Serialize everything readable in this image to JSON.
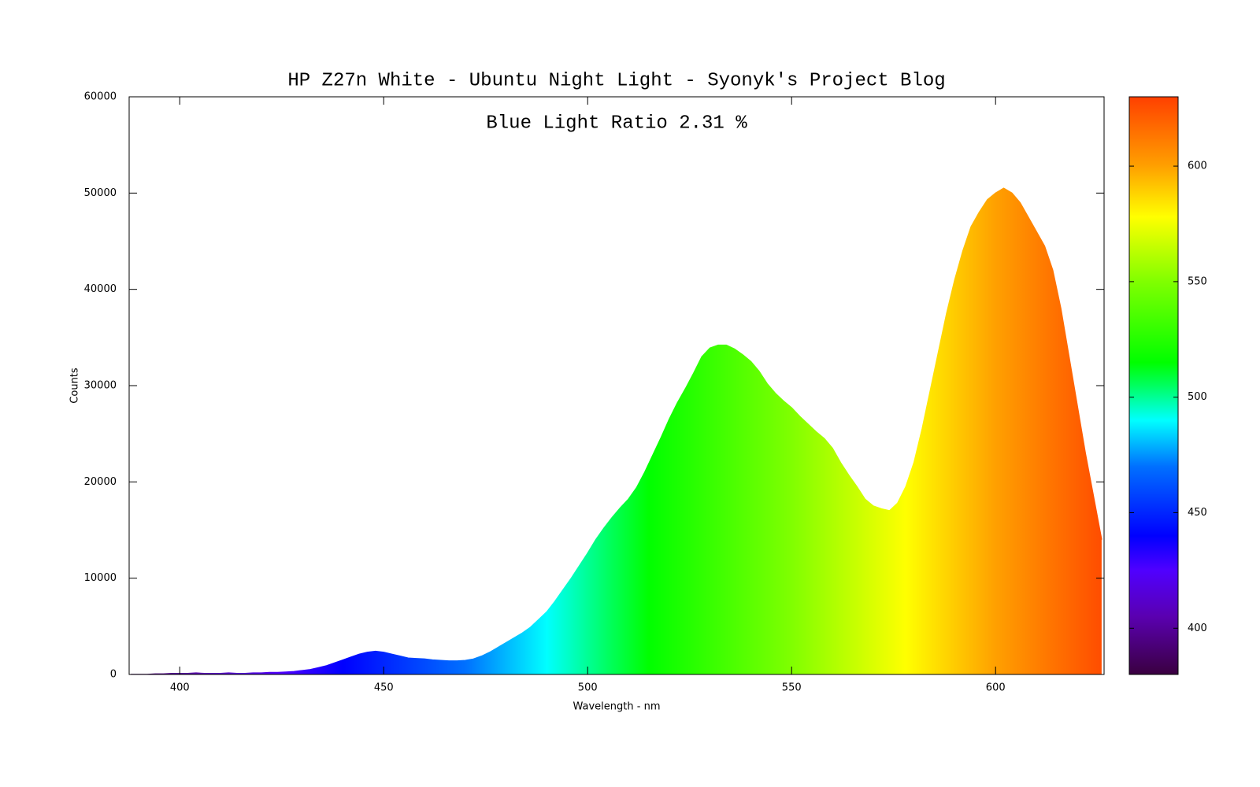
{
  "chart_data": {
    "type": "area",
    "title": "HP Z27n White - Ubuntu Night Light - Syonyk's Project Blog",
    "annotation": "Blue Light Ratio 2.31 %",
    "x_label": "Wavelength - nm",
    "y_label": "Counts",
    "x": [
      388,
      390,
      392,
      394,
      396,
      398,
      400,
      402,
      404,
      406,
      408,
      410,
      412,
      414,
      416,
      418,
      420,
      422,
      424,
      426,
      428,
      430,
      432,
      434,
      436,
      438,
      440,
      442,
      444,
      446,
      448,
      450,
      452,
      454,
      456,
      458,
      460,
      462,
      464,
      466,
      468,
      470,
      472,
      474,
      476,
      478,
      480,
      482,
      484,
      486,
      488,
      490,
      492,
      494,
      496,
      498,
      500,
      502,
      504,
      506,
      508,
      510,
      512,
      514,
      516,
      518,
      520,
      522,
      524,
      526,
      528,
      530,
      532,
      534,
      536,
      538,
      540,
      542,
      544,
      546,
      548,
      550,
      552,
      554,
      556,
      558,
      560,
      562,
      564,
      566,
      568,
      570,
      572,
      574,
      576,
      578,
      580,
      582,
      584,
      586,
      588,
      590,
      592,
      594,
      596,
      598,
      600,
      602,
      604,
      606,
      608,
      610,
      612,
      614,
      616,
      618,
      620,
      622,
      624,
      626
    ],
    "values": [
      0,
      0,
      0,
      50,
      50,
      100,
      100,
      100,
      150,
      100,
      100,
      100,
      150,
      100,
      100,
      150,
      150,
      200,
      200,
      250,
      300,
      400,
      500,
      700,
      900,
      1200,
      1500,
      1800,
      2100,
      2300,
      2400,
      2300,
      2100,
      1900,
      1700,
      1650,
      1600,
      1500,
      1450,
      1400,
      1400,
      1450,
      1600,
      1900,
      2300,
      2800,
      3300,
      3800,
      4300,
      4900,
      5700,
      6500,
      7600,
      8800,
      10000,
      11300,
      12600,
      14000,
      15200,
      16300,
      17300,
      18200,
      19400,
      21000,
      22800,
      24600,
      26500,
      28200,
      29700,
      31300,
      33000,
      33900,
      34200,
      34200,
      33800,
      33200,
      32500,
      31500,
      30200,
      29200,
      28400,
      27700,
      26800,
      26000,
      25200,
      24500,
      23500,
      22000,
      20700,
      19500,
      18200,
      17500,
      17200,
      17000,
      17800,
      19500,
      22000,
      25500,
      29500,
      33500,
      37500,
      41000,
      44000,
      46500,
      48000,
      49300,
      50000,
      50500,
      50000,
      49000,
      47500,
      46000,
      44500,
      42000,
      38000,
      33000,
      28000,
      23000,
      18500,
      14000
    ],
    "xlim": [
      387.6,
      626.6
    ],
    "xticks": [
      400,
      450,
      500,
      550,
      600
    ],
    "ylim": [
      0,
      60000
    ],
    "yticks": [
      0,
      10000,
      20000,
      30000,
      40000,
      50000,
      60000
    ],
    "colorbar": {
      "range": [
        380,
        630
      ],
      "ticks": [
        400,
        450,
        500,
        550,
        600
      ],
      "palette": [
        {
          "value": 380,
          "color": "#3a0040"
        },
        {
          "value": 405,
          "color": "#5a00b0"
        },
        {
          "value": 425,
          "color": "#5000ff"
        },
        {
          "value": 440,
          "color": "#0000ff"
        },
        {
          "value": 470,
          "color": "#0070ff"
        },
        {
          "value": 490,
          "color": "#00ffff"
        },
        {
          "value": 505,
          "color": "#00ff60"
        },
        {
          "value": 515,
          "color": "#00ff00"
        },
        {
          "value": 550,
          "color": "#80ff00"
        },
        {
          "value": 578,
          "color": "#ffff00"
        },
        {
          "value": 600,
          "color": "#ffa000"
        },
        {
          "value": 630,
          "color": "#ff4000"
        }
      ]
    }
  }
}
